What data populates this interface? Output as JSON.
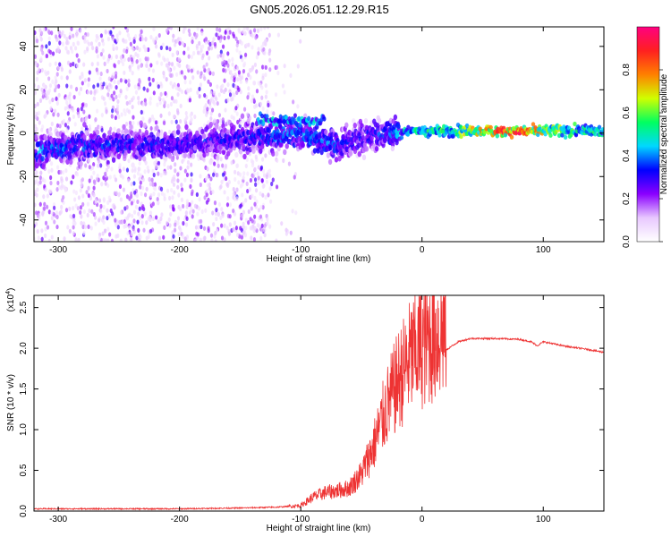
{
  "title": "GN05.2026.051.12.29.R15",
  "chart_data": [
    {
      "type": "heatmap",
      "xlabel": "Height of straight line (km)",
      "ylabel": "Frequency (Hz)",
      "xlim": [
        -320,
        150
      ],
      "ylim": [
        -50,
        49
      ],
      "xticks": [
        -300,
        -200,
        -100,
        0,
        100
      ],
      "yticks": [
        -40,
        -20,
        0,
        20,
        40
      ],
      "colorbar": {
        "label": "Normalized spectral amplitude",
        "range": [
          0,
          1
        ],
        "ticks": [
          0.0,
          0.2,
          0.4,
          0.6,
          0.8
        ],
        "colors": [
          "#ffffff",
          "#e8c8ff",
          "#8a00ff",
          "#0000ff",
          "#00d8ff",
          "#00ff60",
          "#d0ff00",
          "#ff8000",
          "#ff2020",
          "#ff0080"
        ]
      },
      "ridge": [
        {
          "x": -320,
          "y": -8,
          "amp": 0.45
        },
        {
          "x": -280,
          "y": -6,
          "amp": 0.4
        },
        {
          "x": -240,
          "y": -5,
          "amp": 0.38
        },
        {
          "x": -200,
          "y": -5,
          "amp": 0.36
        },
        {
          "x": -160,
          "y": -3,
          "amp": 0.35
        },
        {
          "x": -130,
          "y": -2,
          "amp": 0.4
        },
        {
          "x": -110,
          "y": 0,
          "amp": 0.45
        },
        {
          "x": -90,
          "y": -2,
          "amp": 0.45
        },
        {
          "x": -70,
          "y": -6,
          "amp": 0.4
        },
        {
          "x": -50,
          "y": -2,
          "amp": 0.35
        },
        {
          "x": -30,
          "y": 0,
          "amp": 0.4
        },
        {
          "x": -10,
          "y": 1,
          "amp": 0.55
        },
        {
          "x": 20,
          "y": 1,
          "amp": 0.6
        },
        {
          "x": 50,
          "y": 1,
          "amp": 0.85
        },
        {
          "x": 80,
          "y": 1,
          "amp": 0.95
        },
        {
          "x": 100,
          "y": 1,
          "amp": 0.75
        },
        {
          "x": 130,
          "y": 1,
          "amp": 0.6
        },
        {
          "x": 150,
          "y": 1,
          "amp": 0.55
        }
      ]
    },
    {
      "type": "line",
      "xlabel": "Height of straight line (km)",
      "ylabel": "SNR (10 * v/v)",
      "yscale_label": "(x10",
      "yscale_exp": "4",
      "xlim": [
        -320,
        150
      ],
      "ylim": [
        0,
        2.65
      ],
      "xticks": [
        -300,
        -200,
        -100,
        0,
        100
      ],
      "yticks": [
        0.0,
        0.5,
        1.0,
        1.5,
        2.0,
        2.5
      ],
      "color": "#ee3333",
      "series": [
        {
          "x": [
            -320,
            -250,
            -200,
            -150,
            -120,
            -100,
            -90,
            -80,
            -70,
            -60,
            -50,
            -40,
            -30,
            -20,
            -10,
            0,
            10,
            20,
            30,
            40,
            60,
            80,
            90,
            95,
            100,
            110,
            120,
            135,
            150
          ],
          "y": [
            0.02,
            0.02,
            0.02,
            0.03,
            0.04,
            0.06,
            0.15,
            0.2,
            0.22,
            0.25,
            0.4,
            0.7,
            1.1,
            1.4,
            1.65,
            1.8,
            1.9,
            1.98,
            2.08,
            2.12,
            2.12,
            2.11,
            2.08,
            2.03,
            2.08,
            2.05,
            2.02,
            1.99,
            1.95
          ]
        }
      ]
    }
  ]
}
